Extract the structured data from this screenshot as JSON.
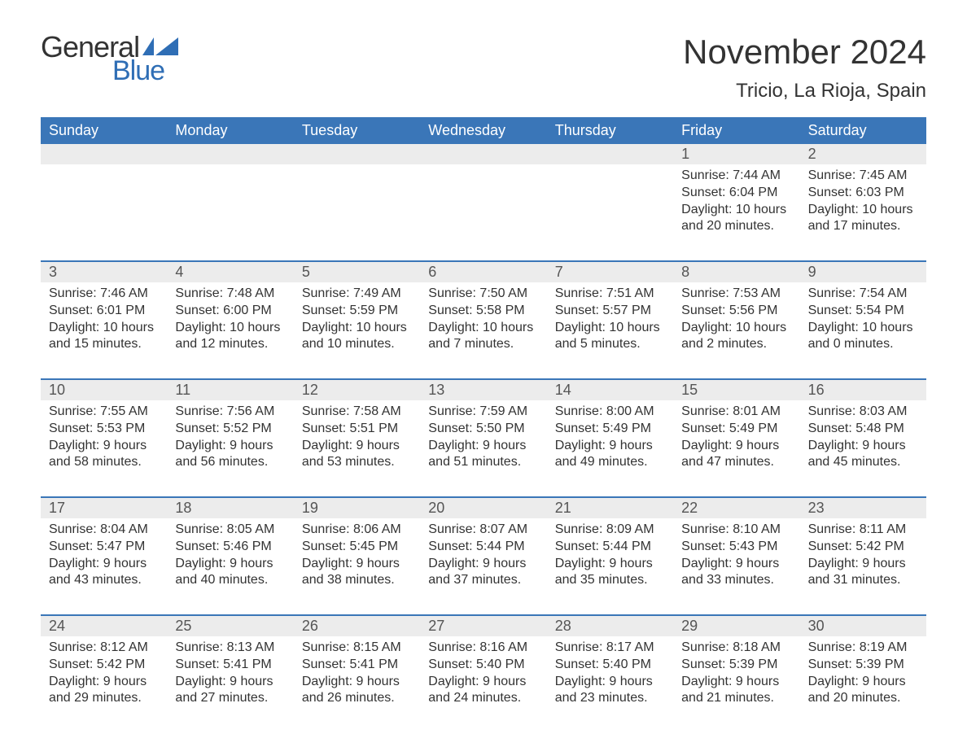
{
  "logo": {
    "word1": "General",
    "word2": "Blue",
    "word1_color": "#333333",
    "word2_color": "#2f6eb5",
    "flag_color": "#2f6eb5"
  },
  "title": {
    "month": "November 2024",
    "location": "Tricio, La Rioja, Spain"
  },
  "colors": {
    "header_bg": "#3a76b8",
    "header_text": "#ffffff",
    "daynum_bg": "#ececec",
    "daynum_border": "#3a76b8",
    "body_text": "#333333",
    "background": "#ffffff"
  },
  "daysOfWeek": [
    "Sunday",
    "Monday",
    "Tuesday",
    "Wednesday",
    "Thursday",
    "Friday",
    "Saturday"
  ],
  "weeks": [
    [
      {
        "num": "",
        "lines": []
      },
      {
        "num": "",
        "lines": []
      },
      {
        "num": "",
        "lines": []
      },
      {
        "num": "",
        "lines": []
      },
      {
        "num": "",
        "lines": []
      },
      {
        "num": "1",
        "lines": [
          "Sunrise: 7:44 AM",
          "Sunset: 6:04 PM",
          "Daylight: 10 hours",
          "and 20 minutes."
        ]
      },
      {
        "num": "2",
        "lines": [
          "Sunrise: 7:45 AM",
          "Sunset: 6:03 PM",
          "Daylight: 10 hours",
          "and 17 minutes."
        ]
      }
    ],
    [
      {
        "num": "3",
        "lines": [
          "Sunrise: 7:46 AM",
          "Sunset: 6:01 PM",
          "Daylight: 10 hours",
          "and 15 minutes."
        ]
      },
      {
        "num": "4",
        "lines": [
          "Sunrise: 7:48 AM",
          "Sunset: 6:00 PM",
          "Daylight: 10 hours",
          "and 12 minutes."
        ]
      },
      {
        "num": "5",
        "lines": [
          "Sunrise: 7:49 AM",
          "Sunset: 5:59 PM",
          "Daylight: 10 hours",
          "and 10 minutes."
        ]
      },
      {
        "num": "6",
        "lines": [
          "Sunrise: 7:50 AM",
          "Sunset: 5:58 PM",
          "Daylight: 10 hours",
          "and 7 minutes."
        ]
      },
      {
        "num": "7",
        "lines": [
          "Sunrise: 7:51 AM",
          "Sunset: 5:57 PM",
          "Daylight: 10 hours",
          "and 5 minutes."
        ]
      },
      {
        "num": "8",
        "lines": [
          "Sunrise: 7:53 AM",
          "Sunset: 5:56 PM",
          "Daylight: 10 hours",
          "and 2 minutes."
        ]
      },
      {
        "num": "9",
        "lines": [
          "Sunrise: 7:54 AM",
          "Sunset: 5:54 PM",
          "Daylight: 10 hours",
          "and 0 minutes."
        ]
      }
    ],
    [
      {
        "num": "10",
        "lines": [
          "Sunrise: 7:55 AM",
          "Sunset: 5:53 PM",
          "Daylight: 9 hours",
          "and 58 minutes."
        ]
      },
      {
        "num": "11",
        "lines": [
          "Sunrise: 7:56 AM",
          "Sunset: 5:52 PM",
          "Daylight: 9 hours",
          "and 56 minutes."
        ]
      },
      {
        "num": "12",
        "lines": [
          "Sunrise: 7:58 AM",
          "Sunset: 5:51 PM",
          "Daylight: 9 hours",
          "and 53 minutes."
        ]
      },
      {
        "num": "13",
        "lines": [
          "Sunrise: 7:59 AM",
          "Sunset: 5:50 PM",
          "Daylight: 9 hours",
          "and 51 minutes."
        ]
      },
      {
        "num": "14",
        "lines": [
          "Sunrise: 8:00 AM",
          "Sunset: 5:49 PM",
          "Daylight: 9 hours",
          "and 49 minutes."
        ]
      },
      {
        "num": "15",
        "lines": [
          "Sunrise: 8:01 AM",
          "Sunset: 5:49 PM",
          "Daylight: 9 hours",
          "and 47 minutes."
        ]
      },
      {
        "num": "16",
        "lines": [
          "Sunrise: 8:03 AM",
          "Sunset: 5:48 PM",
          "Daylight: 9 hours",
          "and 45 minutes."
        ]
      }
    ],
    [
      {
        "num": "17",
        "lines": [
          "Sunrise: 8:04 AM",
          "Sunset: 5:47 PM",
          "Daylight: 9 hours",
          "and 43 minutes."
        ]
      },
      {
        "num": "18",
        "lines": [
          "Sunrise: 8:05 AM",
          "Sunset: 5:46 PM",
          "Daylight: 9 hours",
          "and 40 minutes."
        ]
      },
      {
        "num": "19",
        "lines": [
          "Sunrise: 8:06 AM",
          "Sunset: 5:45 PM",
          "Daylight: 9 hours",
          "and 38 minutes."
        ]
      },
      {
        "num": "20",
        "lines": [
          "Sunrise: 8:07 AM",
          "Sunset: 5:44 PM",
          "Daylight: 9 hours",
          "and 37 minutes."
        ]
      },
      {
        "num": "21",
        "lines": [
          "Sunrise: 8:09 AM",
          "Sunset: 5:44 PM",
          "Daylight: 9 hours",
          "and 35 minutes."
        ]
      },
      {
        "num": "22",
        "lines": [
          "Sunrise: 8:10 AM",
          "Sunset: 5:43 PM",
          "Daylight: 9 hours",
          "and 33 minutes."
        ]
      },
      {
        "num": "23",
        "lines": [
          "Sunrise: 8:11 AM",
          "Sunset: 5:42 PM",
          "Daylight: 9 hours",
          "and 31 minutes."
        ]
      }
    ],
    [
      {
        "num": "24",
        "lines": [
          "Sunrise: 8:12 AM",
          "Sunset: 5:42 PM",
          "Daylight: 9 hours",
          "and 29 minutes."
        ]
      },
      {
        "num": "25",
        "lines": [
          "Sunrise: 8:13 AM",
          "Sunset: 5:41 PM",
          "Daylight: 9 hours",
          "and 27 minutes."
        ]
      },
      {
        "num": "26",
        "lines": [
          "Sunrise: 8:15 AM",
          "Sunset: 5:41 PM",
          "Daylight: 9 hours",
          "and 26 minutes."
        ]
      },
      {
        "num": "27",
        "lines": [
          "Sunrise: 8:16 AM",
          "Sunset: 5:40 PM",
          "Daylight: 9 hours",
          "and 24 minutes."
        ]
      },
      {
        "num": "28",
        "lines": [
          "Sunrise: 8:17 AM",
          "Sunset: 5:40 PM",
          "Daylight: 9 hours",
          "and 23 minutes."
        ]
      },
      {
        "num": "29",
        "lines": [
          "Sunrise: 8:18 AM",
          "Sunset: 5:39 PM",
          "Daylight: 9 hours",
          "and 21 minutes."
        ]
      },
      {
        "num": "30",
        "lines": [
          "Sunrise: 8:19 AM",
          "Sunset: 5:39 PM",
          "Daylight: 9 hours",
          "and 20 minutes."
        ]
      }
    ]
  ]
}
